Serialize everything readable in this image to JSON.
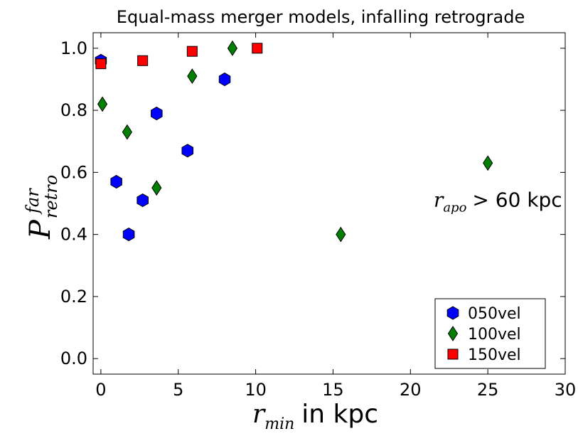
{
  "chart_data": {
    "type": "scatter",
    "title": "Equal-mass merger models, infalling retrograde",
    "xlabel": {
      "math": "r",
      "sub": "min",
      "text": "in kpc"
    },
    "ylabel": {
      "math": "P",
      "sub": "retro",
      "sup": "far"
    },
    "xlim": [
      -0.5,
      30
    ],
    "ylim": [
      -0.05,
      1.05
    ],
    "xticks": [
      0,
      5,
      10,
      15,
      20,
      25,
      30
    ],
    "xtick_labels": [
      "0",
      "5",
      "10",
      "15",
      "20",
      "25",
      "30"
    ],
    "yticks": [
      0.0,
      0.2,
      0.4,
      0.6,
      0.8,
      1.0
    ],
    "ytick_labels": [
      "0.0",
      "0.2",
      "0.4",
      "0.6",
      "0.8",
      "1.0"
    ],
    "legend_position": "lower-right",
    "series": [
      {
        "name": "050vel",
        "marker": "hexagon",
        "color": "#0000ff",
        "x": [
          0.0,
          1.0,
          1.8,
          2.7,
          3.6,
          5.6,
          8.0
        ],
        "y": [
          0.96,
          0.57,
          0.4,
          0.51,
          0.79,
          0.67,
          0.9
        ]
      },
      {
        "name": "100vel",
        "marker": "diamond",
        "color": "#007f00",
        "x": [
          0.1,
          1.7,
          3.6,
          5.9,
          8.5,
          15.5,
          25.0
        ],
        "y": [
          0.82,
          0.73,
          0.55,
          0.91,
          1.0,
          0.4,
          0.63
        ]
      },
      {
        "name": "150vel",
        "marker": "square",
        "color": "#ff0000",
        "x": [
          0.0,
          2.7,
          5.9,
          10.1
        ],
        "y": [
          0.95,
          0.96,
          0.99,
          1.0
        ]
      }
    ],
    "annotation": {
      "math": "r",
      "sub": "apo",
      "text": "> 60 kpc",
      "x": 21.5,
      "y": 0.49
    }
  }
}
